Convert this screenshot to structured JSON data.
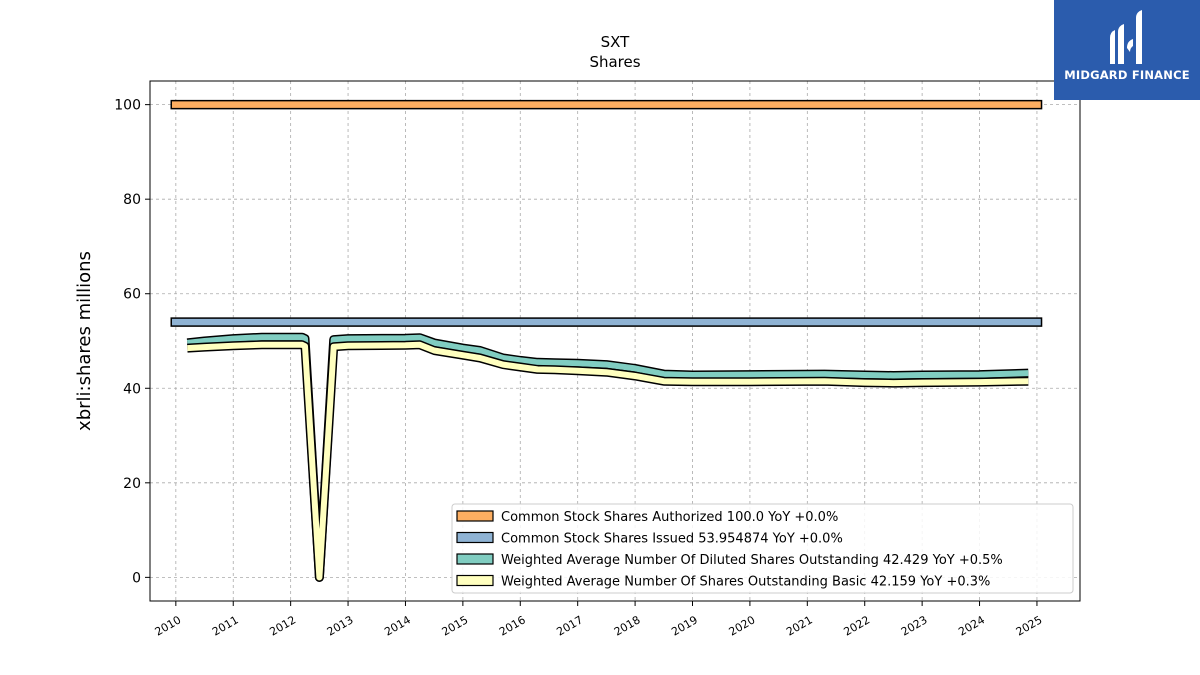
{
  "chart_data": {
    "type": "line",
    "title": "SXT",
    "subtitle": "Shares",
    "ylabel": "xbrli:shares millions",
    "xlabel": "",
    "ylim": [
      -5,
      105
    ],
    "xlim": [
      2009.55,
      2025.75
    ],
    "yticks": [
      0,
      20,
      40,
      60,
      80,
      100
    ],
    "xticks": [
      "2010",
      "2011",
      "2012",
      "2013",
      "2014",
      "2015",
      "2016",
      "2017",
      "2018",
      "2019",
      "2020",
      "2021",
      "2022",
      "2023",
      "2024",
      "2025"
    ],
    "grid": true,
    "legend_position": "lower-right",
    "series": [
      {
        "name": "Common Stock Shares Authorized",
        "legend": "Common Stock Shares Authorized  100.0 YoY +0.0%",
        "style": "band",
        "color": "#fdae61",
        "points": [
          [
            2009.92,
            100.0
          ],
          [
            2025.08,
            100.0
          ]
        ]
      },
      {
        "name": "Common Stock Shares Issued",
        "legend": "Common Stock Shares Issued  53.954874 YoY +0.0%",
        "style": "band",
        "color": "#8fb3d4",
        "points": [
          [
            2009.92,
            54.0
          ],
          [
            2025.08,
            54.0
          ]
        ]
      },
      {
        "name": "Weighted Average Number Of Diluted Shares Outstanding",
        "legend": "Weighted Average Number Of Diluted Shares Outstanding  42.429 YoY +0.5%",
        "style": "line",
        "color": "#80cdc1",
        "points": [
          [
            2010.2,
            49.6
          ],
          [
            2010.5,
            50.0
          ],
          [
            2011.0,
            50.5
          ],
          [
            2011.5,
            50.8
          ],
          [
            2012.2,
            50.8
          ],
          [
            2012.25,
            50.5
          ],
          [
            2012.5,
            0.0
          ],
          [
            2012.75,
            50.3
          ],
          [
            2013.0,
            50.5
          ],
          [
            2014.0,
            50.6
          ],
          [
            2014.25,
            50.7
          ],
          [
            2014.5,
            49.6
          ],
          [
            2015.0,
            48.5
          ],
          [
            2015.3,
            48.0
          ],
          [
            2015.7,
            46.4
          ],
          [
            2016.0,
            45.9
          ],
          [
            2016.3,
            45.5
          ],
          [
            2016.6,
            45.4
          ],
          [
            2017.0,
            45.3
          ],
          [
            2017.5,
            45.0
          ],
          [
            2018.0,
            44.2
          ],
          [
            2018.5,
            43.0
          ],
          [
            2019.0,
            42.8
          ],
          [
            2020.0,
            42.9
          ],
          [
            2021.3,
            43.0
          ],
          [
            2022.0,
            42.8
          ],
          [
            2022.5,
            42.7
          ],
          [
            2023.0,
            42.8
          ],
          [
            2024.0,
            42.9
          ],
          [
            2024.85,
            43.2
          ]
        ]
      },
      {
        "name": "Weighted Average Number Of Shares Outstanding Basic",
        "legend": "Weighted Average Number Of Shares Outstanding Basic  42.159 YoY +0.3%",
        "style": "line",
        "color": "#ffffbf",
        "points": [
          [
            2010.2,
            48.5
          ],
          [
            2010.5,
            48.7
          ],
          [
            2011.0,
            49.0
          ],
          [
            2011.5,
            49.2
          ],
          [
            2012.2,
            49.2
          ],
          [
            2012.25,
            48.9
          ],
          [
            2012.5,
            0.0
          ],
          [
            2012.75,
            48.8
          ],
          [
            2013.0,
            49.0
          ],
          [
            2014.0,
            49.1
          ],
          [
            2014.25,
            49.2
          ],
          [
            2014.5,
            48.0
          ],
          [
            2015.0,
            47.0
          ],
          [
            2015.3,
            46.4
          ],
          [
            2015.7,
            45.0
          ],
          [
            2016.0,
            44.5
          ],
          [
            2016.3,
            44.0
          ],
          [
            2016.6,
            43.9
          ],
          [
            2017.0,
            43.7
          ],
          [
            2017.5,
            43.4
          ],
          [
            2018.0,
            42.6
          ],
          [
            2018.5,
            41.5
          ],
          [
            2019.0,
            41.4
          ],
          [
            2020.0,
            41.4
          ],
          [
            2021.3,
            41.5
          ],
          [
            2022.0,
            41.2
          ],
          [
            2022.5,
            41.1
          ],
          [
            2023.0,
            41.2
          ],
          [
            2024.0,
            41.3
          ],
          [
            2024.85,
            41.5
          ]
        ]
      }
    ]
  },
  "logo": {
    "text": "MIDGARD FINANCE",
    "background": "#2b5cad"
  }
}
